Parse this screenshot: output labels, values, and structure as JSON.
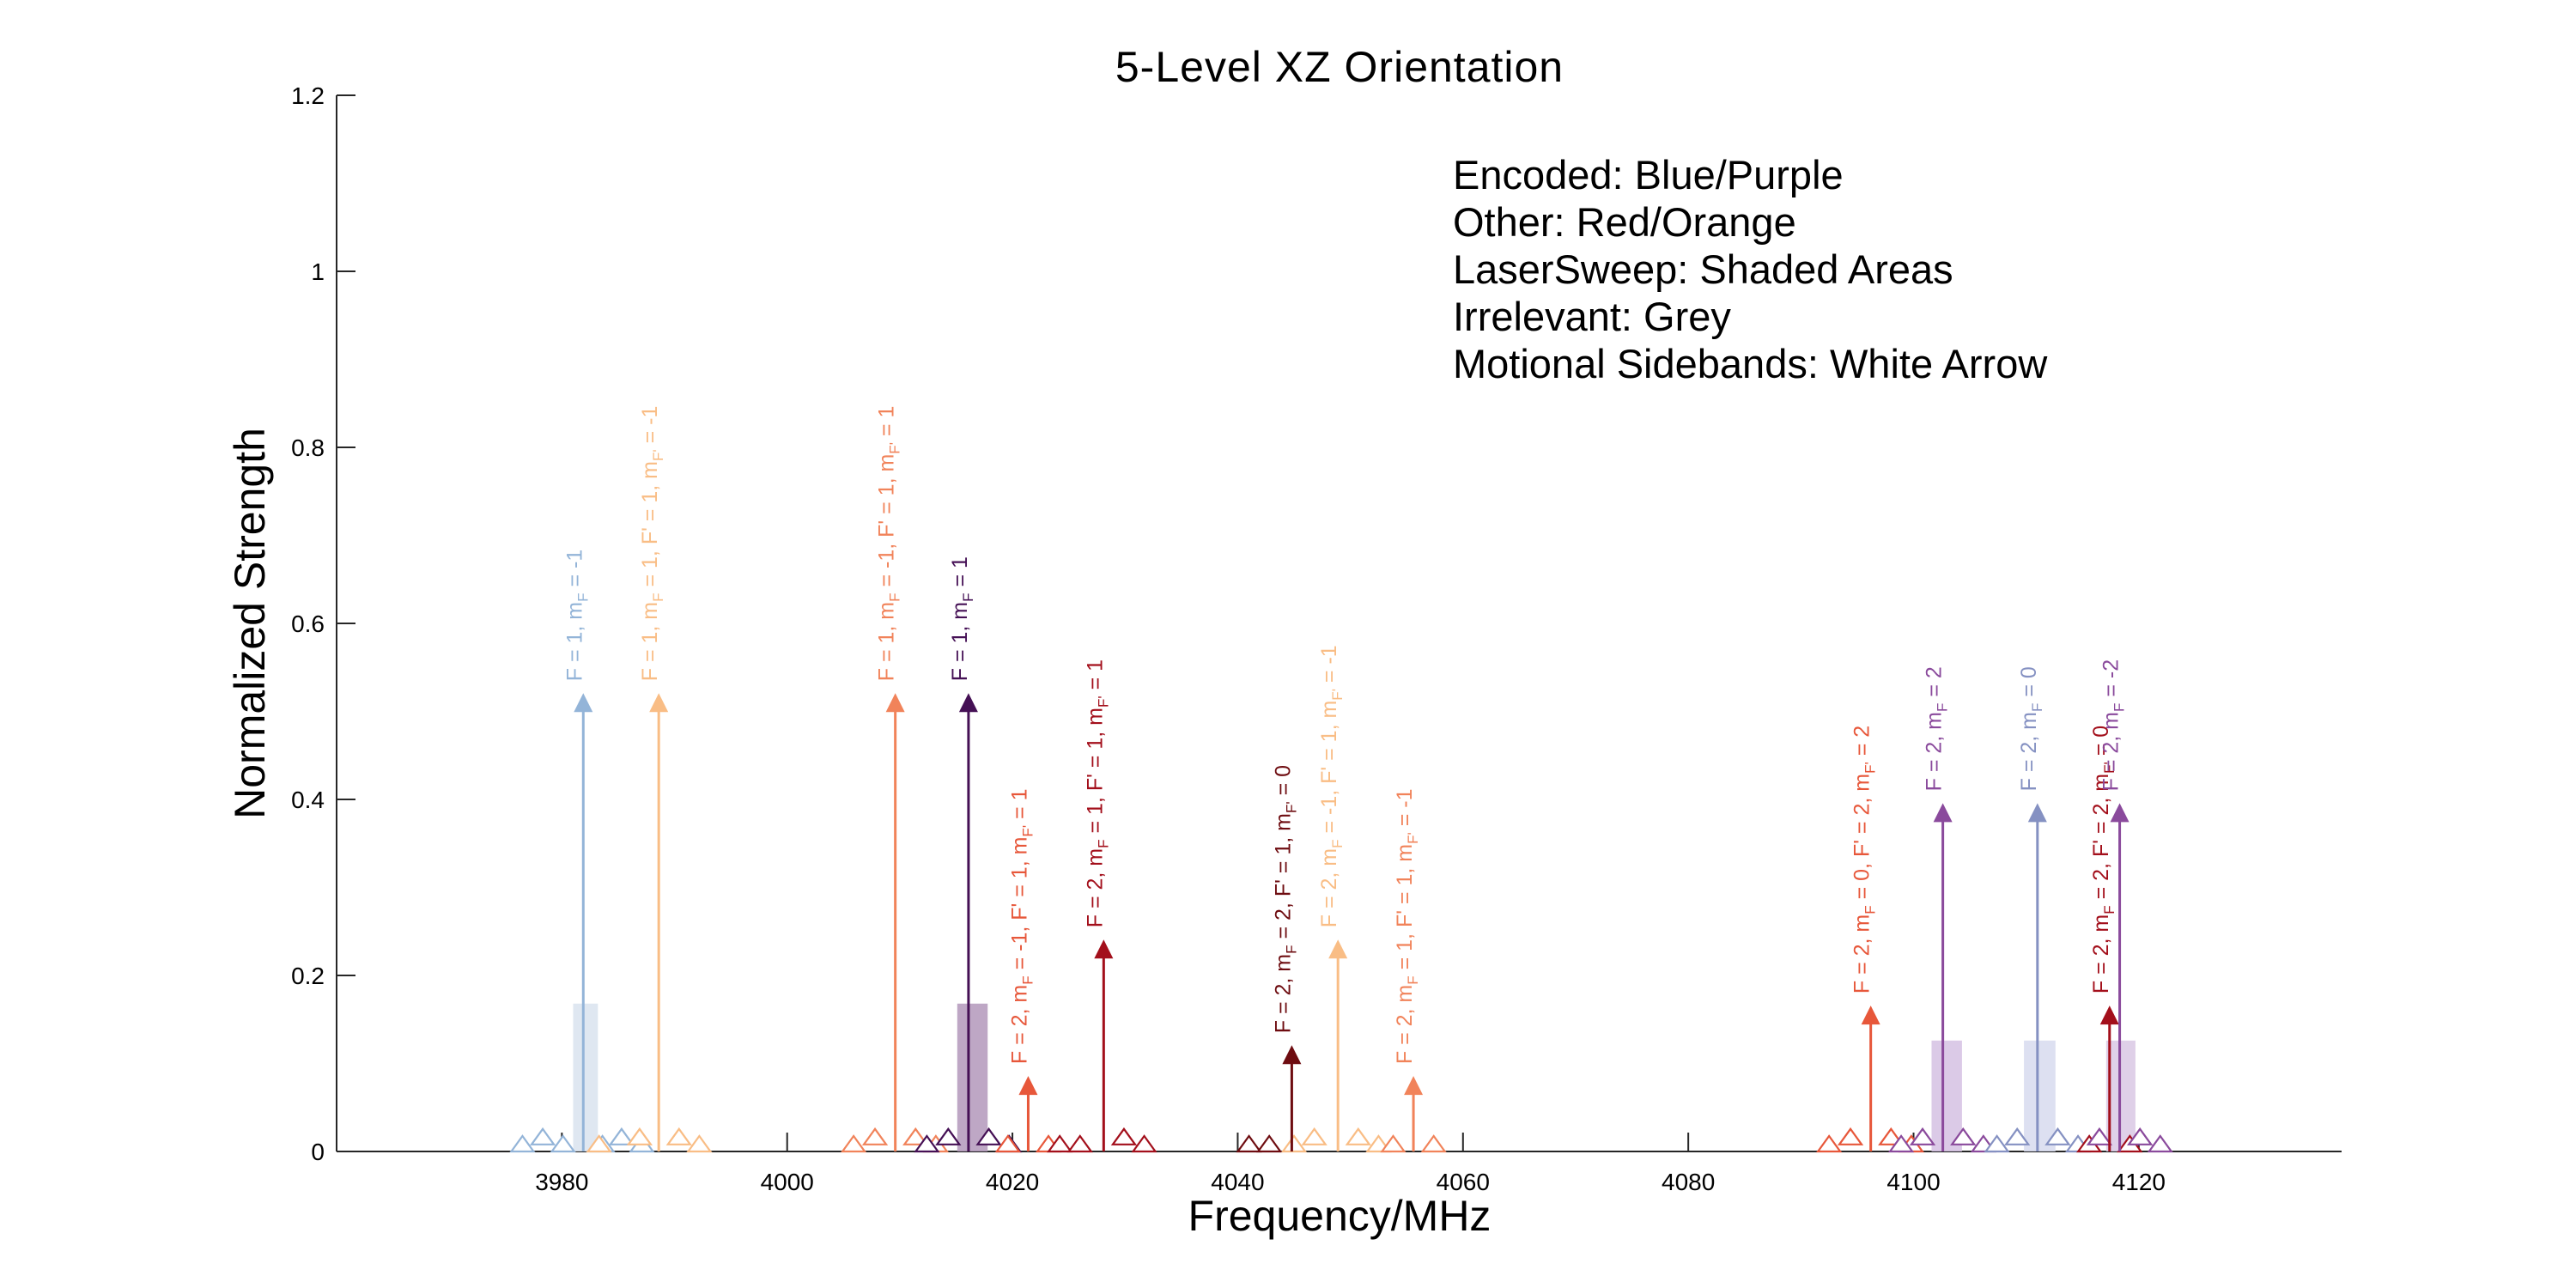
{
  "chart_data": {
    "type": "stem",
    "title": "5-Level XZ Orientation",
    "xlabel": "Frequency/MHz",
    "ylabel": "Normalized Strength",
    "xlim": [
      3960,
      4138
    ],
    "ylim": [
      0,
      1.2
    ],
    "xticks": [
      3980,
      4000,
      4020,
      4040,
      4060,
      4080,
      4100,
      4120
    ],
    "yticks": [
      0,
      0.2,
      0.4,
      0.6,
      0.8,
      1,
      1.2
    ],
    "grid": false,
    "annotations": [
      "Encoded: Blue/Purple",
      "Other: Red/Orange",
      "LaserSweep: Shaded Areas",
      "Irrelevant: Grey",
      "Motional Sidebands: White Arrow"
    ],
    "colors": {
      "light_blue": "#93b4d8",
      "light_orange": "#f9bd85",
      "orange": "#f1835a",
      "dark_purple": "#451055",
      "red_orange": "#e7573a",
      "dark_red": "#a30f1b",
      "darkest_red": "#6e0c10",
      "purple": "#8a4a9c",
      "slate_blue": "#8591c2"
    },
    "transitions": [
      {
        "x": 3981.9,
        "y": 0.51,
        "color": "#93b4d8",
        "label": [
          "F = 1, m",
          "F",
          " = -1"
        ]
      },
      {
        "x": 3988.6,
        "y": 0.51,
        "color": "#f9bd85",
        "label": [
          "F = 1, m",
          "F",
          " = 1, F' = 1, m",
          "F'",
          " = -1"
        ]
      },
      {
        "x": 4009.6,
        "y": 0.51,
        "color": "#f1835a",
        "label": [
          "F = 1, m",
          "F",
          " = -1, F' = 1, m",
          "F'",
          " = 1"
        ]
      },
      {
        "x": 4016.1,
        "y": 0.51,
        "color": "#451055",
        "label": [
          "F = 1, m",
          "F",
          " = 1"
        ]
      },
      {
        "x": 4021.4,
        "y": 0.075,
        "color": "#e7573a",
        "label": [
          "F = 2, m",
          "F",
          " = -1, F' = 1, m",
          "F'",
          " = 1"
        ]
      },
      {
        "x": 4028.1,
        "y": 0.23,
        "color": "#a30f1b",
        "label": [
          "F = 2, m",
          "F",
          " = 1, F' = 1, m",
          "F'",
          " = 1"
        ]
      },
      {
        "x": 4044.8,
        "y": 0.11,
        "color": "#6e0c10",
        "label": [
          "F = 2, m",
          "F",
          " = 2, F' = 1, m",
          "F'",
          " = 0"
        ]
      },
      {
        "x": 4048.9,
        "y": 0.23,
        "color": "#f9bd85",
        "label": [
          "F = 2, m",
          "F",
          " = -1, F' = 1, m",
          "F'",
          " = -1"
        ]
      },
      {
        "x": 4055.6,
        "y": 0.075,
        "color": "#f1835a",
        "label": [
          "F = 2, m",
          "F",
          " = 1, F' = 1, m",
          "F'",
          " = -1"
        ]
      },
      {
        "x": 4096.2,
        "y": 0.155,
        "color": "#e7573a",
        "label": [
          "F = 2, m",
          "F",
          " = 0, F' = 2, m",
          "F'",
          " = 2"
        ]
      },
      {
        "x": 4102.6,
        "y": 0.385,
        "color": "#8a4a9c",
        "label": [
          "F = 2, m",
          "F",
          " = 2"
        ]
      },
      {
        "x": 4111.0,
        "y": 0.385,
        "color": "#8591c2",
        "label": [
          "F = 2, m",
          "F",
          " = 0"
        ]
      },
      {
        "x": 4117.4,
        "y": 0.155,
        "color": "#a30f1b",
        "label": [
          "F = 2, m",
          "F",
          " = 2, F' = 2, m",
          "F'",
          " = 0"
        ]
      },
      {
        "x": 4118.3,
        "y": 0.385,
        "color": "#8a4a9c",
        "label": [
          "F = 2, m",
          "F",
          " = -2"
        ]
      }
    ],
    "laser_sweep_regions": [
      {
        "x0": 3981.0,
        "x1": 3983.2,
        "height": 0.168,
        "color": "#dbe4ef"
      },
      {
        "x0": 4015.1,
        "x1": 4017.8,
        "height": 0.168,
        "color": "#b79dbf"
      },
      {
        "x0": 4101.6,
        "x1": 4104.3,
        "height": 0.126,
        "color": "#d7c4e4"
      },
      {
        "x0": 4109.8,
        "x1": 4112.6,
        "height": 0.126,
        "color": "#d9ddf0"
      },
      {
        "x0": 4117.1,
        "x1": 4119.7,
        "height": 0.126,
        "color": "#dccbe6"
      }
    ],
    "sidebands": [
      {
        "x": 3976.5,
        "y": 0.0,
        "color": "#93b4d8"
      },
      {
        "x": 3978.3,
        "y": 0.008,
        "color": "#93b4d8"
      },
      {
        "x": 3980.1,
        "y": 0.0,
        "color": "#93b4d8"
      },
      {
        "x": 3983.6,
        "y": 0.0,
        "color": "#93b4d8"
      },
      {
        "x": 3985.3,
        "y": 0.008,
        "color": "#93b4d8"
      },
      {
        "x": 3987.1,
        "y": 0.0,
        "color": "#93b4d8"
      },
      {
        "x": 3983.3,
        "y": 0.0,
        "color": "#f9bd85"
      },
      {
        "x": 3986.9,
        "y": 0.008,
        "color": "#f9bd85"
      },
      {
        "x": 3990.4,
        "y": 0.008,
        "color": "#f9bd85"
      },
      {
        "x": 3992.2,
        "y": 0.0,
        "color": "#f9bd85"
      },
      {
        "x": 4005.9,
        "y": 0.0,
        "color": "#f1835a"
      },
      {
        "x": 4007.8,
        "y": 0.008,
        "color": "#f1835a"
      },
      {
        "x": 4011.4,
        "y": 0.008,
        "color": "#f1835a"
      },
      {
        "x": 4013.2,
        "y": 0.0,
        "color": "#f1835a"
      },
      {
        "x": 4012.4,
        "y": 0.0,
        "color": "#451055"
      },
      {
        "x": 4014.3,
        "y": 0.008,
        "color": "#451055"
      },
      {
        "x": 4017.9,
        "y": 0.008,
        "color": "#451055"
      },
      {
        "x": 4019.7,
        "y": 0.0,
        "color": "#451055"
      },
      {
        "x": 4019.6,
        "y": 0.0,
        "color": "#e7573a"
      },
      {
        "x": 4023.2,
        "y": 0.0,
        "color": "#e7573a"
      },
      {
        "x": 4024.2,
        "y": 0.0,
        "color": "#a30f1b"
      },
      {
        "x": 4026.0,
        "y": 0.0,
        "color": "#a30f1b"
      },
      {
        "x": 4029.9,
        "y": 0.008,
        "color": "#a30f1b"
      },
      {
        "x": 4031.7,
        "y": 0.0,
        "color": "#a30f1b"
      },
      {
        "x": 4041.0,
        "y": 0.0,
        "color": "#6e0c10"
      },
      {
        "x": 4042.8,
        "y": 0.0,
        "color": "#6e0c10"
      },
      {
        "x": 4046.8,
        "y": 0.008,
        "color": "#f9bd85"
      },
      {
        "x": 4050.7,
        "y": 0.008,
        "color": "#f9bd85"
      },
      {
        "x": 4052.5,
        "y": 0.0,
        "color": "#f9bd85"
      },
      {
        "x": 4045.0,
        "y": 0.0,
        "color": "#f9bd85"
      },
      {
        "x": 4053.8,
        "y": 0.0,
        "color": "#f1835a"
      },
      {
        "x": 4057.4,
        "y": 0.0,
        "color": "#f1835a"
      },
      {
        "x": 4092.5,
        "y": 0.0,
        "color": "#e7573a"
      },
      {
        "x": 4094.4,
        "y": 0.008,
        "color": "#e7573a"
      },
      {
        "x": 4098.0,
        "y": 0.008,
        "color": "#e7573a"
      },
      {
        "x": 4099.8,
        "y": 0.0,
        "color": "#e7573a"
      },
      {
        "x": 4098.9,
        "y": 0.0,
        "color": "#8a4a9c"
      },
      {
        "x": 4100.8,
        "y": 0.008,
        "color": "#8a4a9c"
      },
      {
        "x": 4104.4,
        "y": 0.008,
        "color": "#8a4a9c"
      },
      {
        "x": 4106.2,
        "y": 0.0,
        "color": "#8a4a9c"
      },
      {
        "x": 4107.4,
        "y": 0.0,
        "color": "#8591c2"
      },
      {
        "x": 4109.2,
        "y": 0.008,
        "color": "#8591c2"
      },
      {
        "x": 4112.8,
        "y": 0.008,
        "color": "#8591c2"
      },
      {
        "x": 4114.6,
        "y": 0.0,
        "color": "#8591c2"
      },
      {
        "x": 4115.6,
        "y": 0.0,
        "color": "#a30f1b"
      },
      {
        "x": 4119.2,
        "y": 0.0,
        "color": "#a30f1b"
      },
      {
        "x": 4116.5,
        "y": 0.008,
        "color": "#8a4a9c"
      },
      {
        "x": 4120.1,
        "y": 0.008,
        "color": "#8a4a9c"
      },
      {
        "x": 4121.9,
        "y": 0.0,
        "color": "#8a4a9c"
      }
    ]
  }
}
